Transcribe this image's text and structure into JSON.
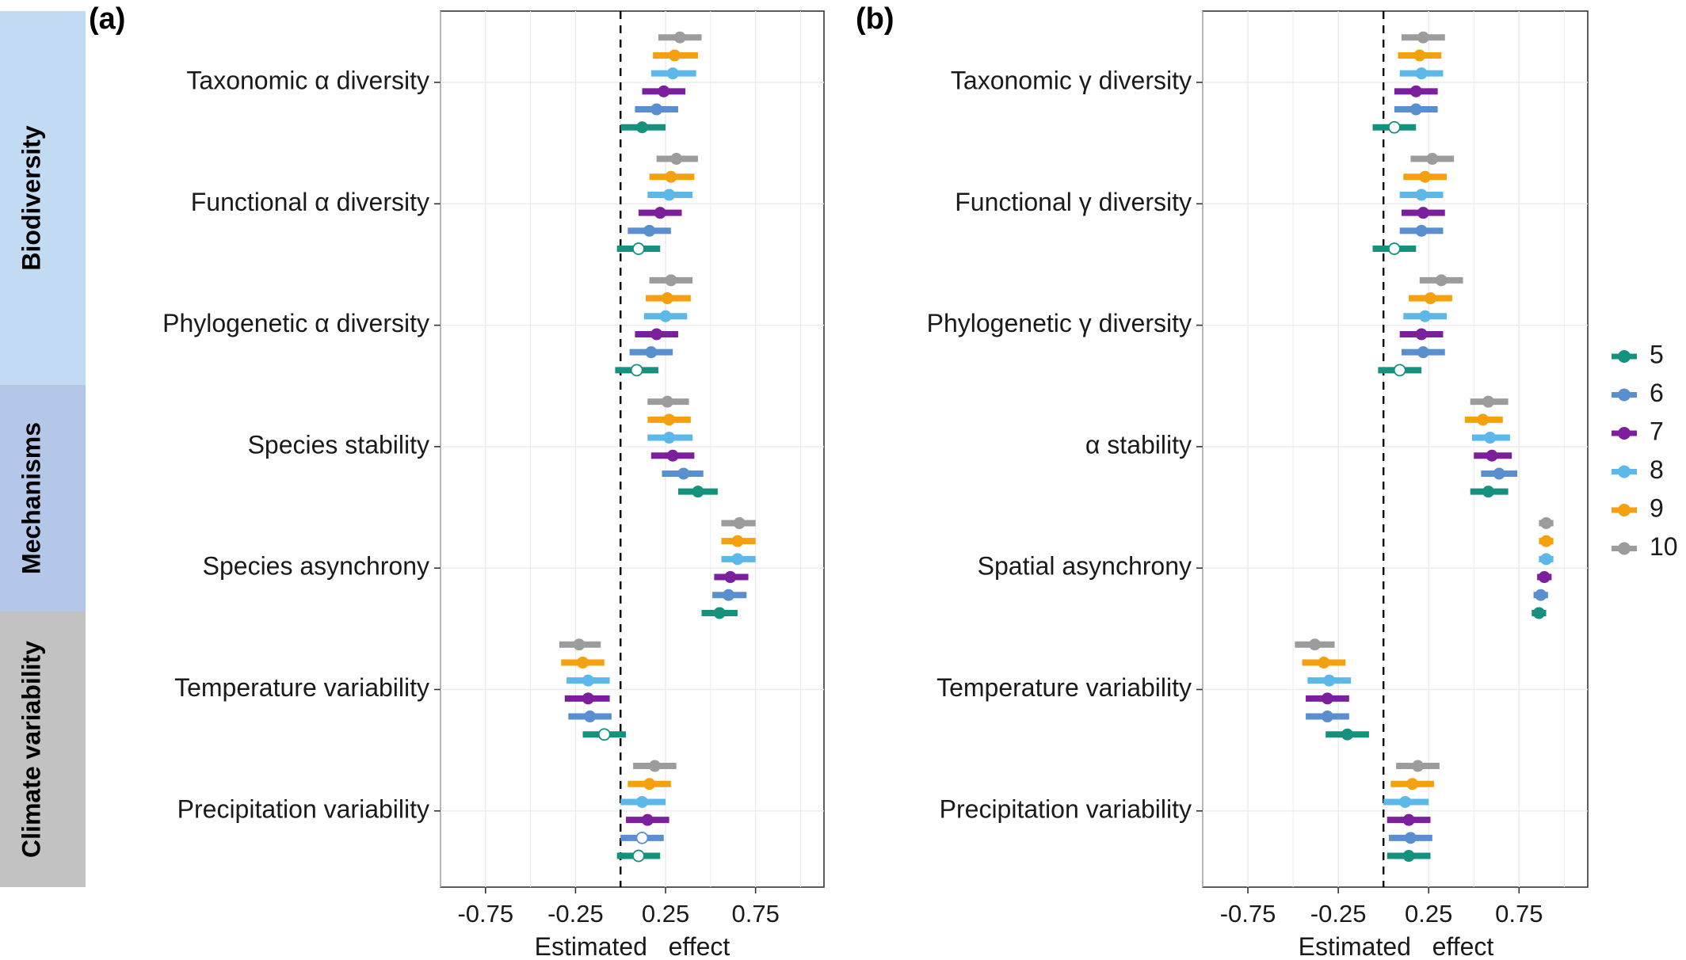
{
  "colors": {
    "5": "#16917e",
    "6": "#5a8fcf",
    "7": "#7b1f9c",
    "8": "#5cb8e8",
    "9": "#f5a00f",
    "10": "#9c9c9c",
    "strip_biodiversity": "#c2dbf2",
    "strip_mechanisms": "#b4c7e8",
    "strip_climate": "#c2c2c2"
  },
  "strips": [
    "Biodiversity",
    "Mechanisms",
    "Climate variability"
  ],
  "legend": {
    "entries": [
      "5",
      "6",
      "7",
      "8",
      "9",
      "10"
    ]
  },
  "chart_data": [
    {
      "type": "scatter",
      "panel_label": "(a)",
      "xlabel": "Estimated   effect",
      "ylabel": "",
      "xlim": [
        -1.0,
        1.13
      ],
      "xticks": [
        "-0.75",
        "-0.25",
        "0.25",
        "0.75"
      ],
      "xtick_values": [
        -0.75,
        -0.25,
        0.25,
        0.75
      ],
      "reference_line": 0,
      "grid": true,
      "legend_position": "right",
      "categories": [
        "Taxonomic α diversity",
        "Functional α diversity",
        "Phylogenetic α diversity",
        "Species stability",
        "Species asynchrony",
        "Temperature variability",
        "Precipitation variability"
      ],
      "series": [
        {
          "name": "10",
          "points": [
            {
              "est": 0.33,
              "lo": 0.21,
              "hi": 0.45,
              "sig": true
            },
            {
              "est": 0.31,
              "lo": 0.2,
              "hi": 0.43,
              "sig": true
            },
            {
              "est": 0.28,
              "lo": 0.16,
              "hi": 0.4,
              "sig": true
            },
            {
              "est": 0.26,
              "lo": 0.15,
              "hi": 0.38,
              "sig": true
            },
            {
              "est": 0.66,
              "lo": 0.56,
              "hi": 0.75,
              "sig": true
            },
            {
              "est": -0.23,
              "lo": -0.34,
              "hi": -0.11,
              "sig": true
            },
            {
              "est": 0.19,
              "lo": 0.07,
              "hi": 0.31,
              "sig": true
            }
          ]
        },
        {
          "name": "9",
          "points": [
            {
              "est": 0.3,
              "lo": 0.18,
              "hi": 0.43,
              "sig": true
            },
            {
              "est": 0.28,
              "lo": 0.16,
              "hi": 0.41,
              "sig": true
            },
            {
              "est": 0.26,
              "lo": 0.14,
              "hi": 0.39,
              "sig": true
            },
            {
              "est": 0.27,
              "lo": 0.15,
              "hi": 0.39,
              "sig": true
            },
            {
              "est": 0.65,
              "lo": 0.56,
              "hi": 0.75,
              "sig": true
            },
            {
              "est": -0.21,
              "lo": -0.33,
              "hi": -0.09,
              "sig": true
            },
            {
              "est": 0.16,
              "lo": 0.04,
              "hi": 0.28,
              "sig": true
            }
          ]
        },
        {
          "name": "8",
          "points": [
            {
              "est": 0.29,
              "lo": 0.17,
              "hi": 0.42,
              "sig": true
            },
            {
              "est": 0.27,
              "lo": 0.15,
              "hi": 0.4,
              "sig": true
            },
            {
              "est": 0.25,
              "lo": 0.13,
              "hi": 0.37,
              "sig": true
            },
            {
              "est": 0.27,
              "lo": 0.15,
              "hi": 0.4,
              "sig": true
            },
            {
              "est": 0.65,
              "lo": 0.56,
              "hi": 0.75,
              "sig": true
            },
            {
              "est": -0.18,
              "lo": -0.3,
              "hi": -0.06,
              "sig": true
            },
            {
              "est": 0.12,
              "lo": 0.0,
              "hi": 0.25,
              "sig": true
            }
          ]
        },
        {
          "name": "7",
          "points": [
            {
              "est": 0.24,
              "lo": 0.12,
              "hi": 0.36,
              "sig": true
            },
            {
              "est": 0.22,
              "lo": 0.1,
              "hi": 0.34,
              "sig": true
            },
            {
              "est": 0.2,
              "lo": 0.08,
              "hi": 0.32,
              "sig": true
            },
            {
              "est": 0.29,
              "lo": 0.17,
              "hi": 0.41,
              "sig": true
            },
            {
              "est": 0.61,
              "lo": 0.52,
              "hi": 0.71,
              "sig": true
            },
            {
              "est": -0.18,
              "lo": -0.31,
              "hi": -0.06,
              "sig": true
            },
            {
              "est": 0.15,
              "lo": 0.03,
              "hi": 0.27,
              "sig": true
            }
          ]
        },
        {
          "name": "6",
          "points": [
            {
              "est": 0.2,
              "lo": 0.08,
              "hi": 0.32,
              "sig": true
            },
            {
              "est": 0.16,
              "lo": 0.04,
              "hi": 0.28,
              "sig": true
            },
            {
              "est": 0.17,
              "lo": 0.05,
              "hi": 0.29,
              "sig": true
            },
            {
              "est": 0.35,
              "lo": 0.23,
              "hi": 0.46,
              "sig": true
            },
            {
              "est": 0.6,
              "lo": 0.51,
              "hi": 0.7,
              "sig": true
            },
            {
              "est": -0.17,
              "lo": -0.29,
              "hi": -0.05,
              "sig": true
            },
            {
              "est": 0.12,
              "lo": 0.0,
              "hi": 0.24,
              "sig": false
            }
          ]
        },
        {
          "name": "5",
          "points": [
            {
              "est": 0.12,
              "lo": 0.0,
              "hi": 0.25,
              "sig": true
            },
            {
              "est": 0.1,
              "lo": -0.02,
              "hi": 0.22,
              "sig": false
            },
            {
              "est": 0.09,
              "lo": -0.03,
              "hi": 0.21,
              "sig": false
            },
            {
              "est": 0.43,
              "lo": 0.32,
              "hi": 0.54,
              "sig": true
            },
            {
              "est": 0.55,
              "lo": 0.45,
              "hi": 0.65,
              "sig": true
            },
            {
              "est": -0.09,
              "lo": -0.21,
              "hi": 0.03,
              "sig": false
            },
            {
              "est": 0.1,
              "lo": -0.02,
              "hi": 0.22,
              "sig": false
            }
          ]
        }
      ]
    },
    {
      "type": "scatter",
      "panel_label": "(b)",
      "xlabel": "Estimated   effect",
      "ylabel": "",
      "xlim": [
        -1.0,
        1.13
      ],
      "xticks": [
        "-0.75",
        "-0.25",
        "0.25",
        "0.75"
      ],
      "xtick_values": [
        -0.75,
        -0.25,
        0.25,
        0.75
      ],
      "reference_line": 0,
      "grid": true,
      "legend_position": "right",
      "categories": [
        "Taxonomic γ diversity",
        "Functional γ diversity",
        "Phylogenetic γ diversity",
        "α stability",
        "Spatial asynchrony",
        "Temperature variability",
        "Precipitation variability"
      ],
      "series": [
        {
          "name": "10",
          "points": [
            {
              "est": 0.22,
              "lo": 0.1,
              "hi": 0.34,
              "sig": true
            },
            {
              "est": 0.27,
              "lo": 0.15,
              "hi": 0.39,
              "sig": true
            },
            {
              "est": 0.32,
              "lo": 0.2,
              "hi": 0.44,
              "sig": true
            },
            {
              "est": 0.58,
              "lo": 0.48,
              "hi": 0.69,
              "sig": true
            },
            {
              "est": 0.9,
              "lo": 0.86,
              "hi": 0.94,
              "sig": true
            },
            {
              "est": -0.38,
              "lo": -0.49,
              "hi": -0.27,
              "sig": true
            },
            {
              "est": 0.19,
              "lo": 0.07,
              "hi": 0.31,
              "sig": true
            }
          ]
        },
        {
          "name": "9",
          "points": [
            {
              "est": 0.2,
              "lo": 0.08,
              "hi": 0.32,
              "sig": true
            },
            {
              "est": 0.23,
              "lo": 0.11,
              "hi": 0.35,
              "sig": true
            },
            {
              "est": 0.26,
              "lo": 0.14,
              "hi": 0.38,
              "sig": true
            },
            {
              "est": 0.55,
              "lo": 0.45,
              "hi": 0.66,
              "sig": true
            },
            {
              "est": 0.9,
              "lo": 0.86,
              "hi": 0.94,
              "sig": true
            },
            {
              "est": -0.33,
              "lo": -0.45,
              "hi": -0.21,
              "sig": true
            },
            {
              "est": 0.16,
              "lo": 0.04,
              "hi": 0.28,
              "sig": true
            }
          ]
        },
        {
          "name": "8",
          "points": [
            {
              "est": 0.21,
              "lo": 0.09,
              "hi": 0.33,
              "sig": true
            },
            {
              "est": 0.21,
              "lo": 0.09,
              "hi": 0.33,
              "sig": true
            },
            {
              "est": 0.23,
              "lo": 0.11,
              "hi": 0.35,
              "sig": true
            },
            {
              "est": 0.59,
              "lo": 0.49,
              "hi": 0.7,
              "sig": true
            },
            {
              "est": 0.9,
              "lo": 0.86,
              "hi": 0.94,
              "sig": true
            },
            {
              "est": -0.3,
              "lo": -0.42,
              "hi": -0.18,
              "sig": true
            },
            {
              "est": 0.12,
              "lo": 0.0,
              "hi": 0.25,
              "sig": true
            }
          ]
        },
        {
          "name": "7",
          "points": [
            {
              "est": 0.18,
              "lo": 0.06,
              "hi": 0.3,
              "sig": true
            },
            {
              "est": 0.22,
              "lo": 0.1,
              "hi": 0.34,
              "sig": true
            },
            {
              "est": 0.21,
              "lo": 0.09,
              "hi": 0.33,
              "sig": true
            },
            {
              "est": 0.6,
              "lo": 0.5,
              "hi": 0.71,
              "sig": true
            },
            {
              "est": 0.89,
              "lo": 0.85,
              "hi": 0.93,
              "sig": true
            },
            {
              "est": -0.31,
              "lo": -0.43,
              "hi": -0.19,
              "sig": true
            },
            {
              "est": 0.14,
              "lo": 0.02,
              "hi": 0.26,
              "sig": true
            }
          ]
        },
        {
          "name": "6",
          "points": [
            {
              "est": 0.18,
              "lo": 0.06,
              "hi": 0.3,
              "sig": true
            },
            {
              "est": 0.21,
              "lo": 0.09,
              "hi": 0.33,
              "sig": true
            },
            {
              "est": 0.22,
              "lo": 0.1,
              "hi": 0.34,
              "sig": true
            },
            {
              "est": 0.64,
              "lo": 0.54,
              "hi": 0.74,
              "sig": true
            },
            {
              "est": 0.87,
              "lo": 0.83,
              "hi": 0.91,
              "sig": true
            },
            {
              "est": -0.31,
              "lo": -0.43,
              "hi": -0.19,
              "sig": true
            },
            {
              "est": 0.15,
              "lo": 0.03,
              "hi": 0.27,
              "sig": true
            }
          ]
        },
        {
          "name": "5",
          "points": [
            {
              "est": 0.06,
              "lo": -0.06,
              "hi": 0.18,
              "sig": false
            },
            {
              "est": 0.06,
              "lo": -0.06,
              "hi": 0.18,
              "sig": false
            },
            {
              "est": 0.09,
              "lo": -0.03,
              "hi": 0.21,
              "sig": false
            },
            {
              "est": 0.58,
              "lo": 0.48,
              "hi": 0.69,
              "sig": true
            },
            {
              "est": 0.86,
              "lo": 0.82,
              "hi": 0.9,
              "sig": true
            },
            {
              "est": -0.2,
              "lo": -0.32,
              "hi": -0.08,
              "sig": true
            },
            {
              "est": 0.14,
              "lo": 0.02,
              "hi": 0.26,
              "sig": true
            }
          ]
        }
      ]
    }
  ]
}
